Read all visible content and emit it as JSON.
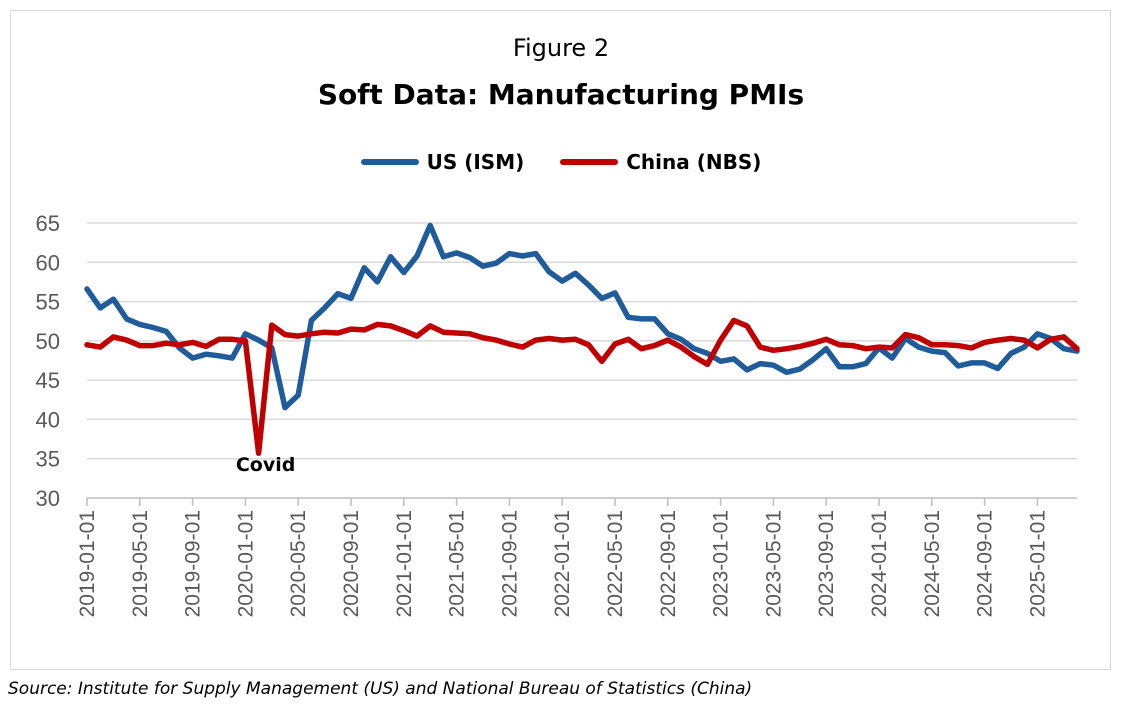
{
  "figure": {
    "label": "Figure 2",
    "title": "Soft Data: Manufacturing PMIs",
    "source": "Source: Institute for Supply Management (US) and National Bureau of Statistics (China)"
  },
  "chart_data": {
    "type": "line",
    "title": "Soft Data: Manufacturing PMIs",
    "xlabel": "",
    "ylabel": "",
    "ylim": [
      30,
      65
    ],
    "yticks": [
      30,
      35,
      40,
      45,
      50,
      55,
      60,
      65
    ],
    "grid": true,
    "legend_position": "top-center",
    "x_start": "2019-01",
    "x_end": "2025-04",
    "x_tick_labels": [
      "2019-01-01",
      "2019-05-01",
      "2019-09-01",
      "2020-01-01",
      "2020-05-01",
      "2020-09-01",
      "2021-01-01",
      "2021-05-01",
      "2021-09-01",
      "2022-01-01",
      "2022-05-01",
      "2022-09-01",
      "2023-01-01",
      "2023-05-01",
      "2023-09-01",
      "2024-01-01",
      "2024-05-01",
      "2024-09-01",
      "2025-01-01"
    ],
    "x": [
      "2019-01",
      "2019-02",
      "2019-03",
      "2019-04",
      "2019-05",
      "2019-06",
      "2019-07",
      "2019-08",
      "2019-09",
      "2019-10",
      "2019-11",
      "2019-12",
      "2020-01",
      "2020-02",
      "2020-03",
      "2020-04",
      "2020-05",
      "2020-06",
      "2020-07",
      "2020-08",
      "2020-09",
      "2020-10",
      "2020-11",
      "2020-12",
      "2021-01",
      "2021-02",
      "2021-03",
      "2021-04",
      "2021-05",
      "2021-06",
      "2021-07",
      "2021-08",
      "2021-09",
      "2021-10",
      "2021-11",
      "2021-12",
      "2022-01",
      "2022-02",
      "2022-03",
      "2022-04",
      "2022-05",
      "2022-06",
      "2022-07",
      "2022-08",
      "2022-09",
      "2022-10",
      "2022-11",
      "2022-12",
      "2023-01",
      "2023-02",
      "2023-03",
      "2023-04",
      "2023-05",
      "2023-06",
      "2023-07",
      "2023-08",
      "2023-09",
      "2023-10",
      "2023-11",
      "2023-12",
      "2024-01",
      "2024-02",
      "2024-03",
      "2024-04",
      "2024-05",
      "2024-06",
      "2024-07",
      "2024-08",
      "2024-09",
      "2024-10",
      "2024-11",
      "2024-12",
      "2025-01",
      "2025-02",
      "2025-03",
      "2025-04"
    ],
    "series": [
      {
        "name": "US (ISM)",
        "color": "#1f5c99",
        "values": [
          56.6,
          54.2,
          55.3,
          52.8,
          52.1,
          51.7,
          51.2,
          49.1,
          47.8,
          48.3,
          48.1,
          47.8,
          50.9,
          50.1,
          49.1,
          41.5,
          43.1,
          52.6,
          54.2,
          56.0,
          55.4,
          59.3,
          57.5,
          60.7,
          58.7,
          60.8,
          64.7,
          60.7,
          61.2,
          60.6,
          59.5,
          59.9,
          61.1,
          60.8,
          61.1,
          58.8,
          57.6,
          58.6,
          57.1,
          55.4,
          56.1,
          53.0,
          52.8,
          52.8,
          50.9,
          50.2,
          49.0,
          48.4,
          47.4,
          47.7,
          46.3,
          47.1,
          46.9,
          46.0,
          46.4,
          47.6,
          49.0,
          46.7,
          46.7,
          47.1,
          49.1,
          47.8,
          50.3,
          49.2,
          48.7,
          48.5,
          46.8,
          47.2,
          47.2,
          46.5,
          48.4,
          49.2,
          50.9,
          50.3,
          49.0,
          48.7
        ]
      },
      {
        "name": "China (NBS)",
        "color": "#c00000",
        "values": [
          49.5,
          49.2,
          50.5,
          50.1,
          49.4,
          49.4,
          49.7,
          49.5,
          49.8,
          49.3,
          50.2,
          50.2,
          50.0,
          35.7,
          52.0,
          50.8,
          50.6,
          50.9,
          51.1,
          51.0,
          51.5,
          51.4,
          52.1,
          51.9,
          51.3,
          50.6,
          51.9,
          51.1,
          51.0,
          50.9,
          50.4,
          50.1,
          49.6,
          49.2,
          50.1,
          50.3,
          50.1,
          50.2,
          49.5,
          47.4,
          49.6,
          50.2,
          49.0,
          49.4,
          50.1,
          49.2,
          48.0,
          47.0,
          50.1,
          52.6,
          51.9,
          49.2,
          48.8,
          49.0,
          49.3,
          49.7,
          50.2,
          49.5,
          49.4,
          49.0,
          49.2,
          49.1,
          50.8,
          50.4,
          49.5,
          49.5,
          49.4,
          49.1,
          49.8,
          50.1,
          50.3,
          50.1,
          49.1,
          50.2,
          50.5,
          49.0
        ]
      }
    ],
    "annotations": [
      {
        "text": "Covid",
        "x": "2020-02",
        "y": 35.7
      }
    ]
  }
}
